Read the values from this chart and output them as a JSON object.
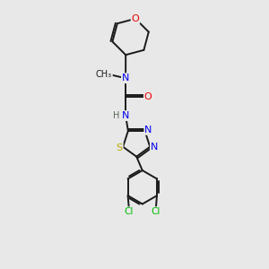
{
  "background_color": "#e8e8e8",
  "bond_color": "#1a1a1a",
  "atom_colors": {
    "N": "#0000ee",
    "O": "#ee0000",
    "S": "#bbaa00",
    "Cl": "#00bb00",
    "C": "#1a1a1a",
    "H": "#556655"
  }
}
